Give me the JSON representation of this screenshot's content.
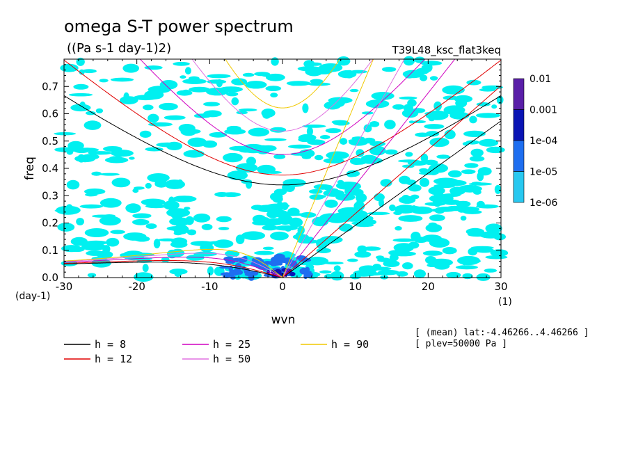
{
  "chart_data": {
    "type": "heatmap",
    "title": "omega S-T power spectrum",
    "subtitle": "((Pa s-1 day-1)2)",
    "run_label": "T39L48_ksc_flat3keq",
    "xlabel": "wvn",
    "ylabel": "freq",
    "x_unit": "(1)",
    "y_unit": "(day-1)",
    "xlim": [
      -30,
      30
    ],
    "ylim": [
      0,
      0.8
    ],
    "x_ticks": [
      "-30",
      "-20",
      "-10",
      "0",
      "10",
      "20",
      "30"
    ],
    "y_ticks": [
      "0.0",
      "0.1",
      "0.2",
      "0.3",
      "0.4",
      "0.5",
      "0.6",
      "0.7"
    ],
    "colorbar": {
      "levels": [
        "0.01",
        "0.001",
        "1e-04",
        "1e-05",
        "1e-06"
      ],
      "colors": [
        "#5a1fa8",
        "#0a14b4",
        "#1e6ef0",
        "#28c8f0",
        "#00f0f0"
      ]
    },
    "series": [
      {
        "name": "h =  8",
        "h": 8,
        "color": "#000000"
      },
      {
        "name": "h = 12",
        "h": 12,
        "color": "#e00000"
      },
      {
        "name": "h = 25",
        "h": 25,
        "color": "#d000c0"
      },
      {
        "name": "h = 50",
        "h": 50,
        "color": "#e070e0"
      },
      {
        "name": "h = 90",
        "h": 90,
        "color": "#f0c800"
      }
    ],
    "annotations": [
      "[ (mean) lat:-4.46266..4.46266 ]",
      "[ plev=50000 Pa ]"
    ]
  }
}
